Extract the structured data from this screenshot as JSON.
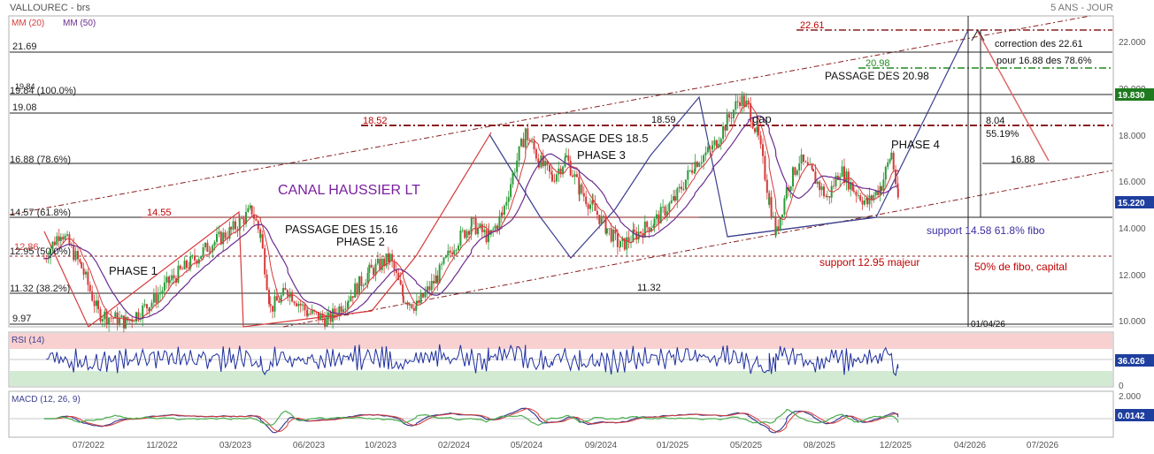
{
  "header": {
    "title": "VALLOUREC - brs",
    "period": "5 ANS - JOUR",
    "ma20_label": "MM (20)",
    "ma50_label": "MM (50)"
  },
  "colors": {
    "price_up": "#2e9b3a",
    "price_down": "#d63a3a",
    "ma20": "#d63a3a",
    "ma50": "#6b2c8f",
    "channel": "#8b1f1f",
    "trend_blue": "#3c3f8f",
    "label_red": "#c00000",
    "label_purple": "#7a1fa0",
    "label_green": "#1f8a1f",
    "badge_green": "#1f7a1f",
    "badge_blue": "#1f3f9f",
    "rsi_line": "#1f2f9f"
  },
  "chart_data": [
    {
      "type": "line",
      "title": "VALLOUREC - brs",
      "ylim": [
        9.6,
        23.2
      ],
      "y_ticks": [
        "22.000",
        "20.000",
        "18.000",
        "16.000",
        "14.000",
        "12.000",
        "10.000"
      ],
      "x_ticks": [
        "07/2022",
        "11/2022",
        "03/2023",
        "06/2023",
        "10/2023",
        "02/2024",
        "05/2024",
        "09/2024",
        "01/2025",
        "05/2025",
        "08/2025",
        "12/2025",
        "04/2026",
        "07/2026"
      ],
      "series": [
        {
          "name": "",
          "values": [
            [
              "2022-04-15",
              12.6
            ],
            [
              "2022-05-10",
              13.8
            ],
            [
              "2022-06-10",
              12.2
            ],
            [
              "2022-07-05",
              10.2
            ],
            [
              "2022-08-15",
              9.8
            ],
            [
              "2022-09-20",
              10.6
            ],
            [
              "2022-10-20",
              11.6
            ],
            [
              "2022-11-20",
              12.4
            ],
            [
              "2022-12-20",
              13.2
            ],
            [
              "2023-01-20",
              13.8
            ],
            [
              "2023-02-20",
              14.7
            ],
            [
              "2023-03-05",
              13.6
            ],
            [
              "2023-03-20",
              10.4
            ],
            [
              "2023-04-15",
              11.2
            ],
            [
              "2023-05-15",
              10.2
            ],
            [
              "2023-06-15",
              9.9
            ],
            [
              "2023-07-15",
              10.9
            ],
            [
              "2023-08-15",
              12.0
            ],
            [
              "2023-09-15",
              12.6
            ],
            [
              "2023-10-05",
              10.9
            ],
            [
              "2023-10-25",
              10.5
            ],
            [
              "2023-11-25",
              11.8
            ],
            [
              "2023-12-20",
              13.2
            ],
            [
              "2024-01-15",
              14.1
            ],
            [
              "2024-02-10",
              13.5
            ],
            [
              "2024-03-01",
              14.5
            ],
            [
              "2024-03-20",
              16.6
            ],
            [
              "2024-04-05",
              18.1
            ],
            [
              "2024-04-25",
              16.9
            ],
            [
              "2024-05-15",
              16.1
            ],
            [
              "2024-06-05",
              17.0
            ],
            [
              "2024-06-25",
              15.6
            ],
            [
              "2024-07-15",
              14.8
            ],
            [
              "2024-08-05",
              13.9
            ],
            [
              "2024-08-25",
              13.1
            ],
            [
              "2024-09-15",
              13.6
            ],
            [
              "2024-10-15",
              14.2
            ],
            [
              "2024-11-15",
              15.2
            ],
            [
              "2024-12-15",
              16.8
            ],
            [
              "2025-01-10",
              17.4
            ],
            [
              "2025-02-01",
              18.6
            ],
            [
              "2025-02-20",
              19.6
            ],
            [
              "2025-03-05",
              19.2
            ],
            [
              "2025-03-20",
              17.8
            ],
            [
              "2025-04-05",
              15.2
            ],
            [
              "2025-04-15",
              13.7
            ],
            [
              "2025-05-01",
              15.6
            ],
            [
              "2025-05-20",
              16.9
            ],
            [
              "2025-06-10",
              16.2
            ],
            [
              "2025-07-01",
              15.2
            ],
            [
              "2025-07-20",
              16.5
            ],
            [
              "2025-08-10",
              15.6
            ],
            [
              "2025-08-30",
              15.0
            ],
            [
              "2025-09-20",
              15.8
            ],
            [
              "2025-10-05",
              17.2
            ],
            [
              "2025-10-15",
              15.2
            ]
          ]
        }
      ],
      "last_value": "19.830",
      "current_value": "15.220"
    },
    {
      "type": "line",
      "title": "RSI (14)",
      "ylim": [
        0,
        100
      ],
      "y_ticks": [
        "0"
      ],
      "last_value": "36.026"
    },
    {
      "type": "line",
      "title": "MACD (12, 26, 9)",
      "y_ticks": [
        "2.000"
      ],
      "last_value": "0.0142"
    }
  ],
  "annotations": {
    "channel_label": "CANAL HAUSSIER LT",
    "phase1": "PHASE 1",
    "phase2": "PHASE 2",
    "phase3": "PHASE 3",
    "phase4": "PHASE 4",
    "passage_1516": "PASSAGE DES 15.16",
    "passage_185": "PASSAGE DES 18.5",
    "passage_2098": "PASSAGE DES 20.98",
    "gap": "gap",
    "level_2261": "22.61",
    "level_2098": "20.98",
    "level_1852": "18.52",
    "level_1859": "18.59",
    "level_1455": "14.55",
    "level_1132_mid": "11.32",
    "level_1688_right": "16.88",
    "pct_804": "8.04",
    "pct_5519": "55.19%",
    "correction_line1": "correction des 22.61",
    "correction_line2": "pour 16.88 des 78.6%",
    "support_1458": "support 14.58 61.8% fibo",
    "support_1295": "support 12.95 majeur",
    "fibo_50": "50% de fibo, capital",
    "date_label": "01/04/26",
    "left_2169": "21.69",
    "left_1984": "19.84",
    "left_1984b": "19.84 (100.0%)",
    "left_1908": "19.08",
    "left_1688": "16.88  (78.6%)",
    "left_1457": "14.57  (61.8%)",
    "left_1295": "12.95  (50.0%)",
    "left_1286": "12.86",
    "left_1132": "11.32  (38.2%)",
    "left_997": "9.97"
  }
}
